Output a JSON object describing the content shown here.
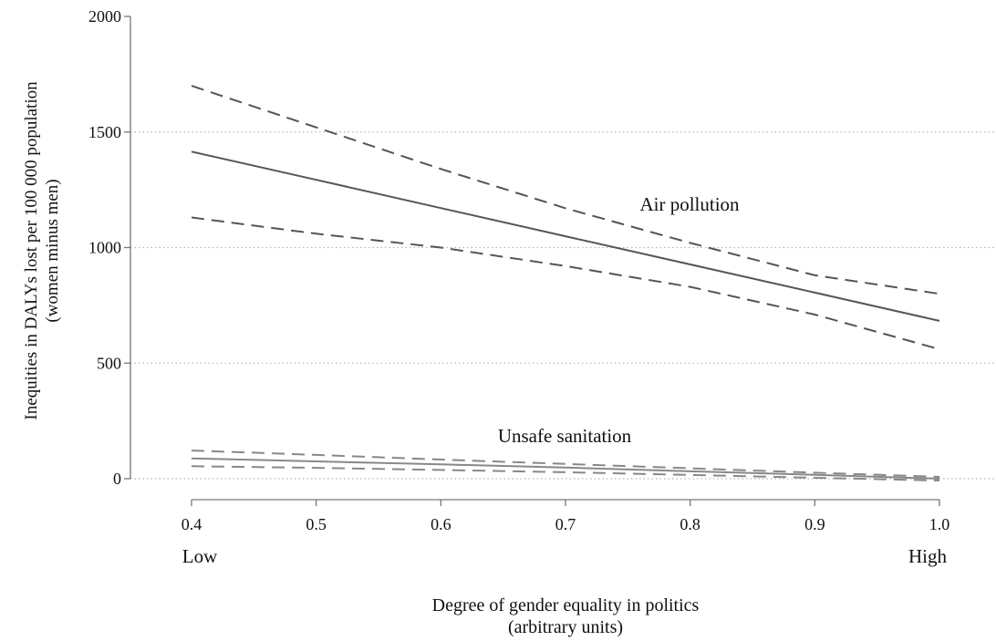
{
  "chart_data": {
    "type": "line",
    "title": "",
    "xlabel": [
      "Degree of gender equality in politics",
      "(arbitrary units)"
    ],
    "ylabel": [
      "Inequities in DALYs lost per 100 000 population",
      "(women minus men)"
    ],
    "xlim": [
      0.4,
      1.0
    ],
    "ylim": [
      0,
      2000
    ],
    "xticks": [
      0.4,
      0.5,
      0.6,
      0.7,
      0.8,
      0.9,
      1.0
    ],
    "xtick_labels": [
      "0.4",
      "0.5",
      "0.6",
      "0.7",
      "0.8",
      "0.9",
      "1.0"
    ],
    "yticks": [
      0,
      500,
      1000,
      1500,
      2000
    ],
    "ytick_labels": [
      "0",
      "500",
      "1000",
      "1500",
      "2000"
    ],
    "x_end_labels": {
      "low": "Low",
      "high": "High"
    },
    "grid": "horizontal dotted",
    "legend": "none",
    "groups": [
      {
        "label": "Air pollution",
        "color": "#555555",
        "x": [
          0.4,
          0.5,
          0.6,
          0.7,
          0.8,
          0.9,
          1.0
        ],
        "fit": [
          1415,
          1293,
          1171,
          1049,
          927,
          805,
          683
        ],
        "upper": [
          1700,
          1520,
          1340,
          1170,
          1020,
          880,
          800
        ],
        "lower": [
          1130,
          1060,
          1000,
          920,
          830,
          710,
          560
        ]
      },
      {
        "label": "Unsafe sanitation",
        "color": "#888888",
        "x": [
          0.4,
          0.5,
          0.6,
          0.7,
          0.8,
          0.9,
          1.0
        ],
        "fit": [
          88,
          75,
          62,
          48,
          32,
          17,
          0
        ],
        "upper": [
          122,
          103,
          83,
          64,
          45,
          26,
          8
        ],
        "lower": [
          54,
          47,
          38,
          28,
          16,
          4,
          -8
        ]
      }
    ]
  }
}
